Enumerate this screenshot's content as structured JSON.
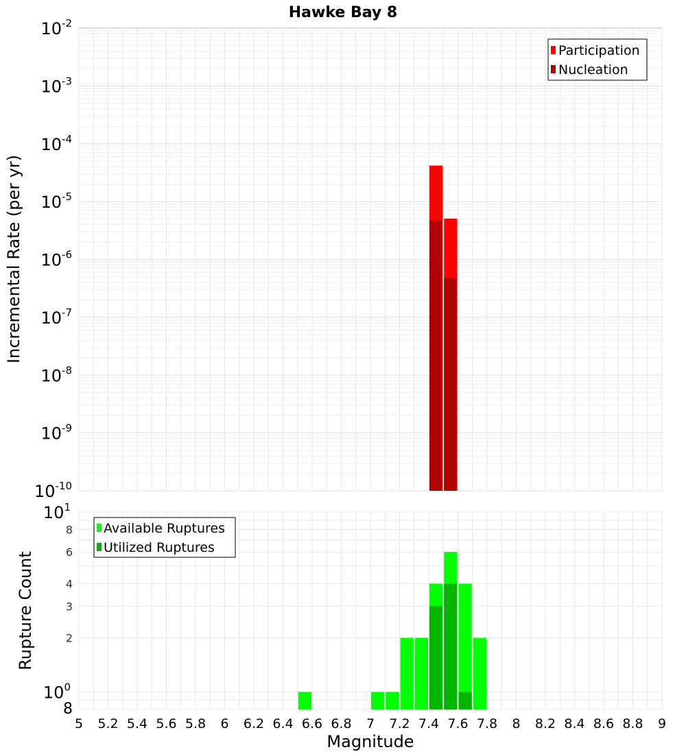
{
  "chart_data": [
    {
      "type": "bar",
      "title": "Hawke Bay 8",
      "ylabel": "Incremental Rate (per yr)",
      "xlabel": "",
      "yscale": "log",
      "ylim": [
        1e-10,
        0.01
      ],
      "xlim": [
        5,
        9
      ],
      "bin_width": 0.1,
      "ytick_bases": [
        "10",
        "10",
        "10",
        "10",
        "10",
        "10",
        "10",
        "10",
        "10"
      ],
      "ytick_exponents": [
        "-10",
        "-9",
        "-8",
        "-7",
        "-6",
        "-5",
        "-4",
        "-3",
        "-2"
      ],
      "legend": [
        "Participation",
        "Nucleation"
      ],
      "legend_position": "top-right",
      "series": [
        {
          "name": "Participation",
          "color": "#ff0000",
          "x": [
            7.45,
            7.55
          ],
          "values": [
            4.2e-05,
            5.1e-06
          ]
        },
        {
          "name": "Nucleation",
          "color": "#b20000",
          "x": [
            7.45,
            7.55
          ],
          "values": [
            4.8e-06,
            4.8e-07
          ]
        }
      ]
    },
    {
      "type": "bar",
      "title": "",
      "ylabel": "Rupture Count",
      "xlabel": "Magnitude",
      "yscale": "log",
      "ylim": [
        0.8,
        10
      ],
      "xlim": [
        5,
        9
      ],
      "bin_width": 0.1,
      "y_major_bases": [
        "10",
        "10"
      ],
      "y_major_exponents": [
        "0",
        "1"
      ],
      "y_minor_ticks": [
        "8",
        "2",
        "3",
        "4",
        "6",
        "8"
      ],
      "x_tick_labels": [
        "5",
        "5.2",
        "5.4",
        "5.6",
        "5.8",
        "6",
        "6.2",
        "6.4",
        "6.6",
        "6.8",
        "7",
        "7.2",
        "7.4",
        "7.6",
        "7.8",
        "8",
        "8.2",
        "8.4",
        "8.6",
        "8.8",
        "9"
      ],
      "legend": [
        "Available Ruptures",
        "Utilized Ruptures"
      ],
      "legend_position": "top-left",
      "series": [
        {
          "name": "Available Ruptures",
          "color": "#00ff00",
          "x": [
            6.55,
            7.05,
            7.15,
            7.25,
            7.35,
            7.45,
            7.55,
            7.65,
            7.75
          ],
          "values": [
            1,
            1,
            1,
            2,
            2,
            4,
            6,
            4,
            2
          ]
        },
        {
          "name": "Utilized Ruptures",
          "color": "#00b400",
          "x": [
            7.45,
            7.55,
            7.65
          ],
          "values": [
            3,
            4,
            1
          ]
        }
      ]
    }
  ]
}
